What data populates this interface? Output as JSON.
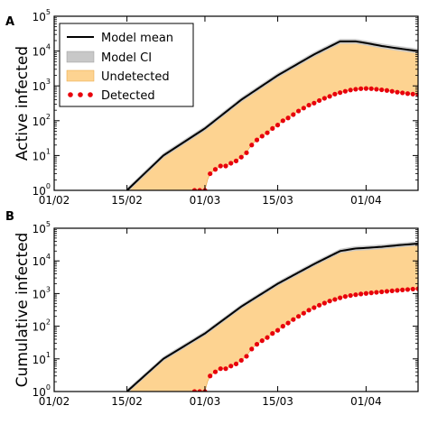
{
  "x_dates": [
    "01/02",
    "02/02",
    "03/02",
    "04/02",
    "05/02",
    "06/02",
    "07/02",
    "08/02",
    "09/02",
    "10/02",
    "11/02",
    "12/02",
    "13/02",
    "14/02",
    "15/02",
    "16/02",
    "17/02",
    "18/02",
    "19/02",
    "20/02",
    "21/02",
    "22/02",
    "23/02",
    "24/02",
    "25/02",
    "26/02",
    "27/02",
    "28/02",
    "29/02",
    "01/03",
    "02/03",
    "03/03",
    "04/03",
    "05/03",
    "06/03",
    "07/03",
    "08/03",
    "09/03",
    "10/03",
    "11/03",
    "12/03",
    "13/03",
    "14/03",
    "15/03",
    "16/03",
    "17/03",
    "18/03",
    "19/03",
    "20/03",
    "21/03",
    "22/03",
    "23/03",
    "24/03",
    "25/03",
    "26/03",
    "27/03",
    "28/03",
    "29/03",
    "30/03",
    "31/03",
    "01/04",
    "02/04",
    "03/04",
    "04/04",
    "05/04",
    "06/04",
    "07/04",
    "08/04",
    "09/04",
    "10/04",
    "11/04"
  ],
  "legend": {
    "model_mean": "Model mean",
    "model_ci": "Model CI",
    "undetected": "Undetected",
    "detected": "Detected"
  },
  "colors": {
    "model_mean": "#000000",
    "model_ci": "#c8c8c8",
    "undetected": "#fdd391",
    "detected": "#e8000b"
  },
  "chart_data": [
    {
      "type": "area",
      "panel_label": "A",
      "ylabel": "Active infected",
      "yscale": "log",
      "ylim": [
        1,
        100000
      ],
      "xlim": [
        "01/02",
        "11/04"
      ],
      "x_ticks": [
        "01/02",
        "15/02",
        "01/03",
        "15/03",
        "01/04"
      ],
      "y_ticks": [
        {
          "base": "10",
          "exp": "0"
        },
        {
          "base": "10",
          "exp": "1"
        },
        {
          "base": "10",
          "exp": "2"
        },
        {
          "base": "10",
          "exp": "3"
        },
        {
          "base": "10",
          "exp": "4"
        },
        {
          "base": "10",
          "exp": "5"
        }
      ],
      "legend_position": "top-left",
      "grid": false,
      "model_mean": {
        "x": [
          "15/02",
          "22/02",
          "01/03",
          "08/03",
          "15/03",
          "22/03",
          "27/03",
          "30/03",
          "01/04",
          "04/04",
          "07/04",
          "11/04"
        ],
        "y": [
          1,
          10,
          60,
          400,
          2000,
          8000,
          19000,
          19000,
          17000,
          14000,
          12000,
          10000
        ]
      },
      "model_ci_halfwidth_factor": 1.18,
      "detected": {
        "x": [
          "28/02",
          "29/02",
          "01/03",
          "02/03",
          "03/03",
          "04/03",
          "05/03",
          "06/03",
          "07/03",
          "08/03",
          "09/03",
          "10/03",
          "11/03",
          "12/03",
          "13/03",
          "14/03",
          "15/03",
          "16/03",
          "17/03",
          "18/03",
          "19/03",
          "20/03",
          "21/03",
          "22/03",
          "23/03",
          "24/03",
          "25/03",
          "26/03",
          "27/03",
          "28/03",
          "29/03",
          "30/03",
          "31/03",
          "01/04",
          "02/04",
          "03/04",
          "04/04",
          "05/04",
          "06/04",
          "07/04",
          "08/04",
          "09/04",
          "10/04",
          "11/04"
        ],
        "y": [
          1,
          1,
          1,
          3,
          4,
          5,
          5,
          6,
          7,
          9,
          12,
          20,
          28,
          36,
          45,
          60,
          75,
          100,
          120,
          150,
          190,
          230,
          280,
          320,
          380,
          440,
          500,
          580,
          640,
          700,
          760,
          800,
          830,
          840,
          830,
          800,
          770,
          740,
          700,
          660,
          630,
          600,
          580,
          560
        ]
      },
      "undetected_band": "from detected (lower) to model mean (upper)"
    },
    {
      "type": "area",
      "panel_label": "B",
      "ylabel": "Cumulative infected",
      "yscale": "log",
      "ylim": [
        1,
        100000
      ],
      "xlim": [
        "01/02",
        "11/04"
      ],
      "x_ticks": [
        "01/02",
        "15/02",
        "01/03",
        "15/03",
        "01/04"
      ],
      "y_ticks": [
        {
          "base": "10",
          "exp": "0"
        },
        {
          "base": "10",
          "exp": "1"
        },
        {
          "base": "10",
          "exp": "2"
        },
        {
          "base": "10",
          "exp": "3"
        },
        {
          "base": "10",
          "exp": "4"
        },
        {
          "base": "10",
          "exp": "5"
        }
      ],
      "grid": false,
      "model_mean": {
        "x": [
          "15/02",
          "22/02",
          "01/03",
          "08/03",
          "15/03",
          "22/03",
          "27/03",
          "30/03",
          "01/04",
          "04/04",
          "07/04",
          "11/04"
        ],
        "y": [
          1,
          10,
          60,
          400,
          2000,
          8000,
          20000,
          24000,
          25000,
          27000,
          30000,
          34000
        ]
      },
      "model_ci_halfwidth_factor": 1.18,
      "detected": {
        "x": [
          "28/02",
          "29/02",
          "01/03",
          "02/03",
          "03/03",
          "04/03",
          "05/03",
          "06/03",
          "07/03",
          "08/03",
          "09/03",
          "10/03",
          "11/03",
          "12/03",
          "13/03",
          "14/03",
          "15/03",
          "16/03",
          "17/03",
          "18/03",
          "19/03",
          "20/03",
          "21/03",
          "22/03",
          "23/03",
          "24/03",
          "25/03",
          "26/03",
          "27/03",
          "28/03",
          "29/03",
          "30/03",
          "31/03",
          "01/04",
          "02/04",
          "03/04",
          "04/04",
          "05/04",
          "06/04",
          "07/04",
          "08/04",
          "09/04",
          "10/04",
          "11/04"
        ],
        "y": [
          1,
          1,
          1,
          3,
          4,
          5,
          5,
          6,
          7,
          9,
          12,
          20,
          28,
          36,
          45,
          60,
          75,
          100,
          125,
          160,
          200,
          250,
          310,
          370,
          440,
          510,
          590,
          660,
          740,
          810,
          870,
          920,
          970,
          1010,
          1050,
          1090,
          1130,
          1170,
          1210,
          1250,
          1290,
          1330,
          1370,
          1400
        ]
      },
      "undetected_band": "from detected (lower) to model mean (upper)"
    }
  ]
}
